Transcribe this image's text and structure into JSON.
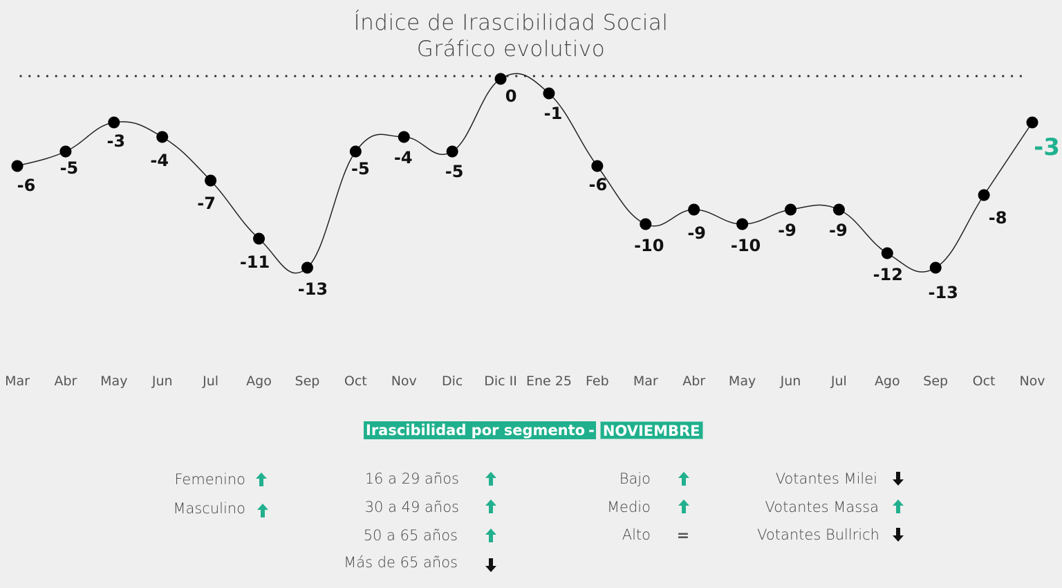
{
  "chart_data": {
    "type": "line",
    "title": "Índice de Irascibilidad Social",
    "subtitle": "Gráfico evolutivo",
    "categories": [
      "Mar",
      "Abr",
      "May",
      "Jun",
      "Jul",
      "Ago",
      "Sep",
      "Oct",
      "Nov",
      "Dic",
      "Dic II",
      "Ene 25",
      "Feb",
      "Mar",
      "Abr",
      "May",
      "Jun",
      "Jul",
      "Ago",
      "Sep",
      "Oct",
      "Nov"
    ],
    "values": [
      -6,
      -5,
      -3,
      -4,
      -7,
      -11,
      -13,
      -5,
      -4,
      -5,
      0,
      -1,
      -6,
      -10,
      -9,
      -10,
      -9,
      -9,
      -12,
      -13,
      -8,
      -3
    ],
    "labels": [
      "-6",
      "-5",
      "-3",
      "-4",
      "-7",
      "-11",
      "-13",
      "-5",
      "-4",
      "-5",
      "0",
      "-1",
      "-6",
      "-10",
      "-9",
      "-10",
      "-9",
      "-9",
      "-12",
      "-13",
      "-8",
      "-3"
    ],
    "ylim": [
      -13,
      0
    ],
    "reference_line": 0,
    "xlabel": "",
    "ylabel": "",
    "colors": {
      "line": "#222222",
      "point": "#000000",
      "reference": "#333333",
      "highlight": "#1fb18f"
    }
  },
  "segments": {
    "title": "Irascibilidad por segmento",
    "separator": "-",
    "month": "NOVIEMBRE",
    "groups": [
      {
        "items": [
          {
            "label": "Femenino",
            "trend": "up"
          },
          {
            "label": "Masculino",
            "trend": "up"
          }
        ]
      },
      {
        "items": [
          {
            "label": "16 a 29 años",
            "trend": "up"
          },
          {
            "label": "30 a 49 años",
            "trend": "up"
          },
          {
            "label": "50 a 65 años",
            "trend": "up"
          },
          {
            "label": "Más de 65 años",
            "trend": "down"
          }
        ]
      },
      {
        "items": [
          {
            "label": "Bajo",
            "trend": "up"
          },
          {
            "label": "Medio",
            "trend": "up"
          },
          {
            "label": "Alto",
            "trend": "equal",
            "symbol": "="
          }
        ]
      },
      {
        "items": [
          {
            "label": "Votantes Milei",
            "trend": "down"
          },
          {
            "label": "Votantes Massa",
            "trend": "up"
          },
          {
            "label": "Votantes Bullrich",
            "trend": "down"
          }
        ]
      }
    ],
    "colors": {
      "banner": "#20b08d",
      "up": "#22b08e",
      "down": "#111111"
    }
  }
}
